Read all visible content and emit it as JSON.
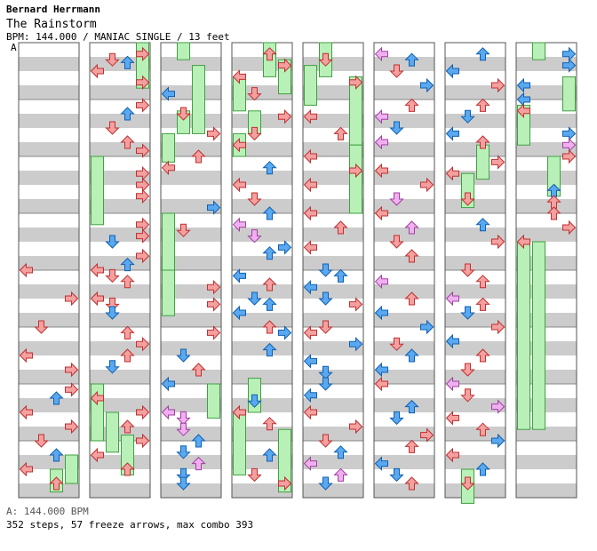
{
  "header": {
    "artist": "Bernard Herrmann",
    "title": "The Rainstorm",
    "meta": "BPM: 144.000 / MANIAC SINGLE / 13 feet",
    "bpm_marker": "A"
  },
  "footer": {
    "bpm_line": "A: 144.000 BPM",
    "stats": "352 steps, 57 freeze arrows, max combo 393"
  },
  "colors": {
    "stripe_dark": "#cccccc",
    "stripe_light": "#ffffff",
    "quarter_note": "#f4a0a0",
    "eighth_note": "#5aa8f0",
    "sixteenth_note": "#f0b0f0",
    "freeze": "#b8f0b8",
    "freeze_edge": "#40a040"
  },
  "chart": {
    "lanes": [
      "left",
      "down",
      "up",
      "right"
    ],
    "measures_per_column": 8,
    "column_count": 8,
    "freeze_count": 57,
    "steps": 352,
    "columns": [
      {
        "notes": [
          [
            4,
            0,
            "r"
          ],
          [
            4.5,
            3,
            "r"
          ],
          [
            5,
            1,
            "r"
          ],
          [
            5.5,
            0,
            "r"
          ],
          [
            5.75,
            3,
            "r"
          ],
          [
            6.1,
            3,
            "r"
          ],
          [
            6.25,
            2,
            "b"
          ],
          [
            6.5,
            0,
            "r"
          ],
          [
            6.75,
            3,
            "r"
          ],
          [
            7,
            1,
            "r"
          ],
          [
            7.25,
            2,
            "b"
          ],
          [
            7.5,
            0,
            "r"
          ],
          [
            7.75,
            2,
            "r"
          ]
        ],
        "freezes": [
          [
            7.5,
            7.9,
            2
          ],
          [
            7.25,
            7.75,
            3
          ]
        ]
      },
      {
        "notes": [
          [
            0.3,
            1,
            "r"
          ],
          [
            0.2,
            3,
            "r"
          ],
          [
            0.35,
            2,
            "b"
          ],
          [
            0.5,
            0,
            "r"
          ],
          [
            0.7,
            3,
            "r"
          ],
          [
            1.1,
            3,
            "r"
          ],
          [
            1.25,
            2,
            "b"
          ],
          [
            1.5,
            1,
            "r"
          ],
          [
            1.75,
            2,
            "r"
          ],
          [
            1.9,
            3,
            "r"
          ],
          [
            2.3,
            3,
            "r"
          ],
          [
            2.5,
            3,
            "r"
          ],
          [
            2.7,
            3,
            "r"
          ],
          [
            3.2,
            3,
            "r"
          ],
          [
            3.4,
            3,
            "r"
          ],
          [
            3.5,
            1,
            "b"
          ],
          [
            3.75,
            3,
            "r"
          ],
          [
            3.9,
            2,
            "b"
          ],
          [
            4,
            0,
            "r"
          ],
          [
            4.1,
            1,
            "r"
          ],
          [
            4.2,
            2,
            "r"
          ],
          [
            4.5,
            0,
            "r"
          ],
          [
            4.6,
            1,
            "r"
          ],
          [
            4.75,
            1,
            "b"
          ],
          [
            5.1,
            2,
            "r"
          ],
          [
            5.3,
            3,
            "r"
          ],
          [
            5.5,
            2,
            "r"
          ],
          [
            5.7,
            1,
            "b"
          ],
          [
            6.25,
            0,
            "r"
          ],
          [
            6.5,
            3,
            "r"
          ],
          [
            6.75,
            2,
            "r"
          ],
          [
            7,
            3,
            "r"
          ],
          [
            7.25,
            0,
            "r"
          ],
          [
            7.5,
            2,
            "r"
          ]
        ],
        "freezes": [
          [
            2,
            3.2,
            0
          ],
          [
            6,
            7,
            0
          ],
          [
            6.5,
            7.2,
            1
          ],
          [
            6.9,
            7.6,
            2
          ],
          [
            0,
            0.8,
            3
          ]
        ]
      },
      {
        "notes": [
          [
            0.9,
            0,
            "b"
          ],
          [
            1.25,
            1,
            "r"
          ],
          [
            1.6,
            3,
            "r"
          ],
          [
            2,
            2,
            "r"
          ],
          [
            2.2,
            0,
            "r"
          ],
          [
            2.9,
            3,
            "b"
          ],
          [
            3.3,
            1,
            "r"
          ],
          [
            4.3,
            3,
            "r"
          ],
          [
            4.6,
            3,
            "r"
          ],
          [
            5.1,
            3,
            "r"
          ],
          [
            5.5,
            1,
            "b"
          ],
          [
            5.75,
            2,
            "r"
          ],
          [
            6,
            0,
            "b"
          ],
          [
            6.5,
            0,
            "p"
          ],
          [
            6.6,
            1,
            "p"
          ],
          [
            6.8,
            1,
            "p"
          ],
          [
            7,
            2,
            "b"
          ],
          [
            7.2,
            1,
            "b"
          ],
          [
            7.4,
            2,
            "p"
          ],
          [
            7.6,
            1,
            "b"
          ],
          [
            7.75,
            1,
            "b"
          ]
        ],
        "freezes": [
          [
            0,
            0.3,
            1
          ],
          [
            0.4,
            1.6,
            2
          ],
          [
            1.2,
            1.6,
            1
          ],
          [
            1.6,
            2.1,
            0
          ],
          [
            3,
            4,
            0
          ],
          [
            4,
            4.8,
            0
          ],
          [
            6,
            6.6,
            3
          ]
        ]
      },
      {
        "notes": [
          [
            0.2,
            2,
            "r"
          ],
          [
            0.4,
            3,
            "r"
          ],
          [
            0.6,
            0,
            "r"
          ],
          [
            0.9,
            1,
            "r"
          ],
          [
            1.3,
            3,
            "r"
          ],
          [
            1.6,
            1,
            "r"
          ],
          [
            1.8,
            0,
            "r"
          ],
          [
            2.2,
            2,
            "b"
          ],
          [
            2.5,
            0,
            "r"
          ],
          [
            2.75,
            1,
            "r"
          ],
          [
            3,
            2,
            "b"
          ],
          [
            3.2,
            0,
            "p"
          ],
          [
            3.4,
            1,
            "p"
          ],
          [
            3.6,
            3,
            "b"
          ],
          [
            3.7,
            2,
            "b"
          ],
          [
            4.1,
            0,
            "b"
          ],
          [
            4.25,
            2,
            "r"
          ],
          [
            4.5,
            1,
            "b"
          ],
          [
            4.6,
            2,
            "b"
          ],
          [
            4.75,
            0,
            "b"
          ],
          [
            5,
            2,
            "r"
          ],
          [
            5.1,
            3,
            "b"
          ],
          [
            5.4,
            2,
            "b"
          ],
          [
            6.3,
            1,
            "b"
          ],
          [
            6.5,
            0,
            "r"
          ],
          [
            6.7,
            2,
            "r"
          ],
          [
            7.25,
            2,
            "b"
          ],
          [
            7.6,
            1,
            "r"
          ],
          [
            7.75,
            3,
            "r"
          ]
        ],
        "freezes": [
          [
            0,
            0.6,
            2
          ],
          [
            0.3,
            0.9,
            3
          ],
          [
            0.6,
            1.2,
            0
          ],
          [
            1.2,
            1.6,
            1
          ],
          [
            1.6,
            2,
            0
          ],
          [
            5.9,
            6.5,
            1
          ],
          [
            6.5,
            7.6,
            0
          ],
          [
            6.8,
            7.9,
            3
          ]
        ]
      },
      {
        "notes": [
          [
            0.3,
            1,
            "r"
          ],
          [
            0.7,
            3,
            "r"
          ],
          [
            1.3,
            0,
            "r"
          ],
          [
            1.6,
            2,
            "r"
          ],
          [
            2,
            0,
            "r"
          ],
          [
            2.25,
            3,
            "r"
          ],
          [
            2.5,
            0,
            "r"
          ],
          [
            3,
            0,
            "r"
          ],
          [
            3.25,
            2,
            "r"
          ],
          [
            3.6,
            0,
            "r"
          ],
          [
            4,
            1,
            "b"
          ],
          [
            4.1,
            2,
            "b"
          ],
          [
            4.3,
            0,
            "b"
          ],
          [
            4.5,
            1,
            "b"
          ],
          [
            4.6,
            3,
            "r"
          ],
          [
            5,
            1,
            "r"
          ],
          [
            5.1,
            0,
            "r"
          ],
          [
            5.3,
            3,
            "b"
          ],
          [
            5.6,
            0,
            "b"
          ],
          [
            5.8,
            1,
            "b"
          ],
          [
            6,
            1,
            "b"
          ],
          [
            6.2,
            0,
            "b"
          ],
          [
            6.5,
            0,
            "r"
          ],
          [
            6.75,
            3,
            "r"
          ],
          [
            7,
            1,
            "r"
          ],
          [
            7.2,
            2,
            "b"
          ],
          [
            7.4,
            0,
            "p"
          ],
          [
            7.6,
            2,
            "p"
          ],
          [
            7.75,
            1,
            "b"
          ]
        ],
        "freezes": [
          [
            0,
            0.6,
            1
          ],
          [
            0.4,
            1.1,
            0
          ],
          [
            0.6,
            1.8,
            3
          ],
          [
            1.8,
            3,
            3
          ]
        ]
      },
      {
        "notes": [
          [
            0.2,
            0,
            "p"
          ],
          [
            0.3,
            2,
            "b"
          ],
          [
            0.5,
            1,
            "r"
          ],
          [
            0.75,
            3,
            "b"
          ],
          [
            1.1,
            2,
            "r"
          ],
          [
            1.3,
            0,
            "p"
          ],
          [
            1.5,
            1,
            "b"
          ],
          [
            1.75,
            0,
            "p"
          ],
          [
            2.25,
            0,
            "r"
          ],
          [
            2.5,
            3,
            "r"
          ],
          [
            2.75,
            1,
            "p"
          ],
          [
            3,
            0,
            "r"
          ],
          [
            3.25,
            2,
            "p"
          ],
          [
            3.5,
            1,
            "r"
          ],
          [
            3.75,
            2,
            "r"
          ],
          [
            4.2,
            0,
            "p"
          ],
          [
            4.5,
            2,
            "r"
          ],
          [
            4.75,
            0,
            "b"
          ],
          [
            5,
            3,
            "b"
          ],
          [
            5.3,
            1,
            "r"
          ],
          [
            5.5,
            2,
            "b"
          ],
          [
            5.75,
            0,
            "b"
          ],
          [
            6,
            0,
            "r"
          ],
          [
            6.4,
            2,
            "b"
          ],
          [
            6.6,
            1,
            "b"
          ],
          [
            6.9,
            3,
            "r"
          ],
          [
            7.1,
            2,
            "r"
          ],
          [
            7.4,
            0,
            "b"
          ],
          [
            7.6,
            1,
            "b"
          ],
          [
            7.75,
            2,
            "r"
          ]
        ],
        "freezes": []
      },
      {
        "notes": [
          [
            0.2,
            2,
            "b"
          ],
          [
            0.5,
            0,
            "b"
          ],
          [
            0.75,
            3,
            "r"
          ],
          [
            1.1,
            2,
            "r"
          ],
          [
            1.3,
            1,
            "b"
          ],
          [
            1.6,
            0,
            "b"
          ],
          [
            1.75,
            2,
            "r"
          ],
          [
            2.1,
            3,
            "r"
          ],
          [
            2.3,
            0,
            "r"
          ],
          [
            2.75,
            1,
            "r"
          ],
          [
            3.2,
            2,
            "b"
          ],
          [
            3.5,
            3,
            "r"
          ],
          [
            4,
            1,
            "r"
          ],
          [
            4.2,
            2,
            "r"
          ],
          [
            4.5,
            0,
            "p"
          ],
          [
            4.6,
            2,
            "r"
          ],
          [
            4.75,
            1,
            "b"
          ],
          [
            5,
            3,
            "r"
          ],
          [
            5.25,
            0,
            "b"
          ],
          [
            5.5,
            2,
            "r"
          ],
          [
            5.75,
            1,
            "r"
          ],
          [
            6,
            0,
            "p"
          ],
          [
            6.2,
            1,
            "r"
          ],
          [
            6.4,
            3,
            "p"
          ],
          [
            6.6,
            0,
            "r"
          ],
          [
            6.8,
            2,
            "r"
          ],
          [
            7,
            3,
            "b"
          ],
          [
            7.25,
            0,
            "r"
          ],
          [
            7.5,
            2,
            "b"
          ],
          [
            7.75,
            1,
            "r"
          ]
        ],
        "freezes": [
          [
            1.8,
            2.4,
            2
          ],
          [
            2.3,
            2.9,
            1
          ],
          [
            7.5,
            8.1,
            1
          ]
        ]
      },
      {
        "notes": [
          [
            0.2,
            3,
            "b"
          ],
          [
            0.4,
            3,
            "b"
          ],
          [
            0.75,
            0,
            "b"
          ],
          [
            1,
            0,
            "b"
          ],
          [
            1.2,
            0,
            "r"
          ],
          [
            1.6,
            3,
            "b"
          ],
          [
            1.8,
            3,
            "p"
          ],
          [
            2,
            3,
            "r"
          ],
          [
            2.6,
            2,
            "b"
          ],
          [
            2.8,
            2,
            "r"
          ],
          [
            3,
            2,
            "r"
          ],
          [
            3.25,
            3,
            "r"
          ],
          [
            3.5,
            0,
            "r"
          ]
        ],
        "freezes": [
          [
            0,
            0.3,
            1
          ],
          [
            0.6,
            1.2,
            3
          ],
          [
            1.1,
            1.8,
            0
          ],
          [
            2,
            2.7,
            2
          ],
          [
            3.5,
            6.8,
            0
          ],
          [
            3.5,
            6.8,
            1
          ]
        ]
      }
    ]
  }
}
